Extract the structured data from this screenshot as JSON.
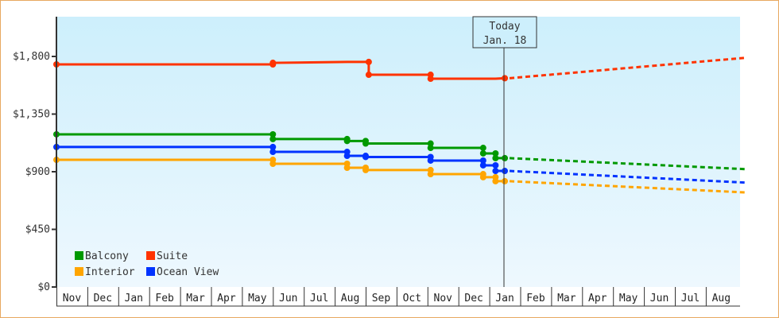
{
  "chart_data": {
    "type": "line",
    "title": "",
    "xlabel": "",
    "ylabel": "",
    "ylim": [
      0,
      2150
    ],
    "y_ticks": [
      "$0",
      "$450",
      "$900",
      "$1,350",
      "$1,800"
    ],
    "y_tick_values": [
      0,
      450,
      900,
      1350,
      1800
    ],
    "x_tick_labels": [
      "Nov",
      "Dec",
      "Jan",
      "Feb",
      "Mar",
      "Apr",
      "May",
      "Jun",
      "Jul",
      "Aug",
      "Sep",
      "Oct",
      "Nov",
      "Dec",
      "Jan",
      "Feb",
      "Mar",
      "Apr",
      "May",
      "Jun",
      "Jul",
      "Aug"
    ],
    "today_marker": {
      "line1": "Today",
      "line2": "Jan. 18"
    },
    "grid": false,
    "legend_position": "bottom-left inside",
    "series": [
      {
        "name": "Balcony",
        "color": "#009900",
        "history": [
          [
            0,
            1192
          ],
          [
            7,
            1192
          ],
          [
            7,
            1155
          ],
          [
            9.4,
            1155
          ],
          [
            9.4,
            1140
          ],
          [
            10,
            1140
          ],
          [
            10,
            1120
          ],
          [
            12.1,
            1120
          ],
          [
            12.1,
            1086
          ],
          [
            13.8,
            1086
          ],
          [
            13.8,
            1043
          ],
          [
            14.2,
            1043
          ],
          [
            14.2,
            1006
          ],
          [
            14.5,
            1006
          ]
        ],
        "forecast": [
          [
            14.5,
            1006
          ],
          [
            22.3,
            920
          ]
        ]
      },
      {
        "name": "Suite",
        "color": "#ff3300",
        "history": [
          [
            0,
            1738
          ],
          [
            7,
            1738
          ],
          [
            7,
            1750
          ],
          [
            9.4,
            1757
          ],
          [
            10.1,
            1757
          ],
          [
            10.1,
            1657
          ],
          [
            12.1,
            1657
          ],
          [
            12.1,
            1626
          ],
          [
            14.2,
            1626
          ],
          [
            14.5,
            1630
          ]
        ],
        "forecast": [
          [
            14.5,
            1630
          ],
          [
            22.3,
            1790
          ]
        ]
      },
      {
        "name": "Interior",
        "color": "#ffa500",
        "history": [
          [
            0,
            993
          ],
          [
            7,
            993
          ],
          [
            7,
            962
          ],
          [
            9.4,
            962
          ],
          [
            9.4,
            931
          ],
          [
            10,
            931
          ],
          [
            10,
            913
          ],
          [
            12.1,
            913
          ],
          [
            12.1,
            881
          ],
          [
            13.8,
            881
          ],
          [
            13.8,
            857
          ],
          [
            14.2,
            857
          ],
          [
            14.2,
            826
          ],
          [
            14.5,
            826
          ]
        ],
        "forecast": [
          [
            14.5,
            826
          ],
          [
            22.3,
            738
          ]
        ]
      },
      {
        "name": "Ocean View",
        "color": "#0033ff",
        "history": [
          [
            0,
            1093
          ],
          [
            7,
            1093
          ],
          [
            7,
            1055
          ],
          [
            9.4,
            1055
          ],
          [
            9.4,
            1024
          ],
          [
            10,
            1024
          ],
          [
            10,
            1015
          ],
          [
            12.1,
            1015
          ],
          [
            12.1,
            987
          ],
          [
            13.8,
            987
          ],
          [
            13.8,
            950
          ],
          [
            14.2,
            950
          ],
          [
            14.2,
            906
          ],
          [
            14.5,
            906
          ]
        ],
        "forecast": [
          [
            14.5,
            906
          ],
          [
            22.3,
            815
          ]
        ]
      }
    ]
  },
  "legend": {
    "items": [
      {
        "label": "Balcony",
        "color": "#009900"
      },
      {
        "label": "Suite",
        "color": "#ff3300"
      },
      {
        "label": "Interior",
        "color": "#ffa500"
      },
      {
        "label": "Ocean View",
        "color": "#0033ff"
      }
    ]
  }
}
